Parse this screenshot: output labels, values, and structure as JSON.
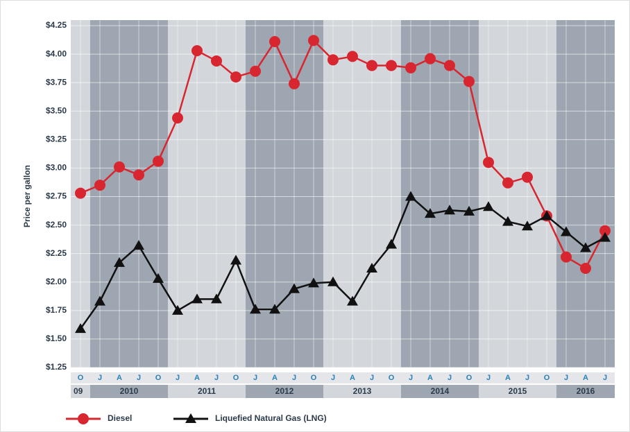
{
  "chart_data": {
    "type": "line",
    "y_label": "Price per gallon",
    "categories": [
      "O",
      "J",
      "A",
      "J",
      "O",
      "J",
      "A",
      "J",
      "O",
      "J",
      "A",
      "J",
      "O",
      "J",
      "A",
      "J",
      "O",
      "J",
      "A",
      "J",
      "O",
      "J",
      "A",
      "J",
      "O",
      "J",
      "A",
      "J"
    ],
    "years": [
      "09",
      "2010",
      "2011",
      "2012",
      "2013",
      "2014",
      "2015",
      "2016"
    ],
    "band_colors": [
      "#d3d7dc",
      "#9ea6b1"
    ],
    "series": [
      {
        "name": "Diesel",
        "color": "#d7262f",
        "marker": "circle",
        "values": [
          2.78,
          2.85,
          3.01,
          2.94,
          3.06,
          3.44,
          4.03,
          3.94,
          3.8,
          3.85,
          4.11,
          3.74,
          4.12,
          3.95,
          3.98,
          3.9,
          3.9,
          3.88,
          3.96,
          3.9,
          3.76,
          3.05,
          2.87,
          2.92,
          2.58,
          2.22,
          2.12,
          2.45
        ]
      },
      {
        "name": "Liquefied Natural Gas (LNG)",
        "color": "#111111",
        "marker": "triangle",
        "values": [
          1.59,
          1.83,
          2.17,
          2.32,
          2.03,
          1.75,
          1.85,
          1.85,
          2.19,
          1.76,
          1.76,
          1.94,
          1.99,
          2.0,
          1.83,
          2.12,
          2.33,
          2.75,
          2.6,
          2.63,
          2.62,
          2.66,
          2.53,
          2.49,
          2.58,
          2.44,
          2.3,
          2.39
        ]
      }
    ],
    "ylim": [
      1.25,
      4.25
    ],
    "yticks": [
      {
        "value": 1.25,
        "label": "$1.25"
      },
      {
        "value": 1.5,
        "label": "$1.50"
      },
      {
        "value": 1.75,
        "label": "$1.75"
      },
      {
        "value": 2,
        "label": "$2.00"
      },
      {
        "value": 2.25,
        "label": "$2.25"
      },
      {
        "value": 2.5,
        "label": "$2.50"
      },
      {
        "value": 2.75,
        "label": "$2.75"
      },
      {
        "value": 3,
        "label": "$3.00"
      },
      {
        "value": 3.25,
        "label": "$3.25"
      },
      {
        "value": 3.5,
        "label": "$3.50"
      },
      {
        "value": 3.75,
        "label": "$3.75"
      },
      {
        "value": 4,
        "label": "$4.00"
      },
      {
        "value": 4.25,
        "label": "$4.25"
      }
    ],
    "grid": true
  }
}
